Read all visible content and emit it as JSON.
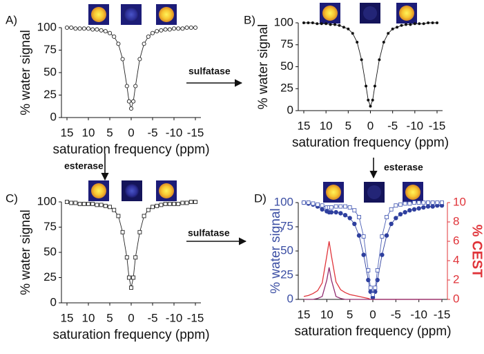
{
  "chart_data": [
    {
      "type": "line",
      "panel_label": "A)",
      "ylabel": "% water signal",
      "xlabel": "saturation frequency (ppm)",
      "x": [
        15,
        14,
        13,
        12,
        11,
        10,
        9,
        8,
        7,
        6,
        5,
        4,
        3,
        2,
        1,
        0.5,
        0,
        -0.5,
        -1,
        -2,
        -3,
        -4,
        -5,
        -6,
        -7,
        -8,
        -9,
        -10,
        -11,
        -12,
        -13,
        -14,
        -15
      ],
      "series": [
        {
          "color": "#222222",
          "marker": "circle-open",
          "values": [
            100,
            100,
            99,
            99,
            99,
            99,
            98,
            98,
            97,
            96,
            94,
            90,
            82,
            65,
            35,
            18,
            10,
            18,
            35,
            65,
            82,
            90,
            94,
            96,
            97,
            98,
            98,
            99,
            99,
            99,
            100,
            100,
            100
          ]
        }
      ],
      "xlim": [
        15,
        -15
      ],
      "xticks": [
        15,
        10,
        5,
        0,
        -5,
        -10,
        -15
      ],
      "ylim": [
        0,
        100
      ],
      "yticks": [
        0,
        25,
        50,
        75,
        100
      ]
    },
    {
      "type": "line",
      "panel_label": "B)",
      "ylabel": "% water signal",
      "xlabel": "saturation frequency (ppm)",
      "x": [
        15,
        14,
        13,
        12,
        11,
        10,
        9,
        8,
        7,
        6,
        5,
        4,
        3,
        2,
        1,
        0.5,
        0,
        -0.5,
        -1,
        -2,
        -3,
        -4,
        -5,
        -6,
        -7,
        -8,
        -9,
        -10,
        -11,
        -12,
        -13,
        -14,
        -15
      ],
      "series": [
        {
          "color": "#111111",
          "marker": "circle-filled",
          "values": [
            100,
            100,
            100,
            99,
            99,
            99,
            98,
            98,
            97,
            95,
            93,
            88,
            78,
            58,
            28,
            12,
            5,
            12,
            28,
            58,
            78,
            88,
            93,
            95,
            97,
            98,
            98,
            99,
            99,
            99,
            100,
            100,
            100
          ]
        }
      ],
      "xlim": [
        15,
        -15
      ],
      "xticks": [
        15,
        10,
        5,
        0,
        -5,
        -10,
        -15
      ],
      "ylim": [
        0,
        100
      ],
      "yticks": [
        0,
        25,
        50,
        75,
        100
      ]
    },
    {
      "type": "line",
      "panel_label": "C)",
      "ylabel": "% water signal",
      "xlabel": "saturation frequency (ppm)",
      "x": [
        15,
        14,
        13,
        12,
        11,
        10,
        9,
        8,
        7,
        6,
        5,
        4,
        3,
        2,
        1,
        0.5,
        0,
        -0.5,
        -1,
        -2,
        -3,
        -4,
        -5,
        -6,
        -7,
        -8,
        -9,
        -10,
        -11,
        -12,
        -13,
        -14,
        -15
      ],
      "series": [
        {
          "color": "#222222",
          "marker": "square-open",
          "values": [
            100,
            99,
            99,
            98,
            98,
            98,
            98,
            97,
            97,
            96,
            95,
            92,
            86,
            70,
            45,
            25,
            15,
            25,
            45,
            70,
            86,
            92,
            95,
            96,
            97,
            98,
            98,
            98,
            98,
            99,
            99,
            100,
            100
          ]
        }
      ],
      "xlim": [
        15,
        -15
      ],
      "xticks": [
        15,
        10,
        5,
        0,
        -5,
        -10,
        -15
      ],
      "ylim": [
        0,
        100
      ],
      "yticks": [
        0,
        25,
        50,
        75,
        100
      ]
    },
    {
      "type": "line",
      "panel_label": "D)",
      "ylabel": "% water  signal",
      "y2label": "% CEST",
      "xlabel": "saturation frequency (ppm)",
      "ylabel_color": "#3b4ea3",
      "y2label_color": "#e0343a",
      "x": [
        15,
        14,
        13,
        12,
        11,
        10,
        9.5,
        9,
        8,
        7,
        6,
        5,
        4,
        3,
        2,
        1,
        0.5,
        0,
        -0.5,
        -1,
        -2,
        -3,
        -4,
        -5,
        -6,
        -7,
        -8,
        -9,
        -10,
        -11,
        -12,
        -13,
        -14,
        -15
      ],
      "series": [
        {
          "color": "#2e3f9e",
          "marker": "circle-filled",
          "values": [
            100,
            99,
            98,
            96,
            93,
            91,
            90,
            90,
            90,
            89,
            87,
            84,
            78,
            66,
            46,
            20,
            8,
            2,
            8,
            20,
            46,
            66,
            78,
            84,
            88,
            90,
            92,
            93,
            94,
            95,
            96,
            96,
            97,
            97
          ]
        },
        {
          "color": "#4b5fb5",
          "marker": "square-open",
          "values": [
            100,
            100,
            99,
            98,
            97,
            95,
            95,
            95,
            96,
            96,
            96,
            95,
            92,
            85,
            65,
            30,
            12,
            5,
            12,
            30,
            65,
            85,
            93,
            97,
            98,
            99,
            99,
            100,
            100,
            100,
            100,
            100,
            100,
            100
          ]
        },
        {
          "color": "#e0343a",
          "marker": "none",
          "axis": "y2",
          "values": [
            0.3,
            0.4,
            0.6,
            0.9,
            1.7,
            4.5,
            6,
            4.5,
            1.8,
            1,
            0.7,
            0.5,
            0.4,
            0.3,
            0.2,
            0.1,
            0,
            0,
            0,
            0,
            0,
            0,
            0,
            0,
            0,
            0,
            0,
            0,
            0,
            0,
            0,
            0,
            0,
            0
          ]
        },
        {
          "color": "#8e2a6e",
          "marker": "none",
          "axis": "y2",
          "values": [
            0,
            0,
            0,
            0.1,
            0.3,
            2,
            3.3,
            2,
            0.3,
            0.1,
            0,
            0,
            0,
            0,
            0,
            0,
            0,
            0,
            0,
            0,
            0,
            0,
            0,
            0,
            0,
            0,
            0,
            0,
            0,
            0,
            0,
            0,
            0,
            0
          ]
        }
      ],
      "xlim": [
        15,
        -15
      ],
      "xticks": [
        15,
        10,
        5,
        0,
        -5,
        -10,
        -15
      ],
      "ylim": [
        0,
        100
      ],
      "yticks": [
        0,
        25,
        50,
        75,
        100
      ],
      "y2lim": [
        0,
        10
      ],
      "y2ticks": [
        0,
        2,
        4,
        6,
        8,
        10
      ]
    }
  ],
  "annotations": [
    "sulfatase",
    "esterase",
    "esterase",
    "sulfatase"
  ]
}
